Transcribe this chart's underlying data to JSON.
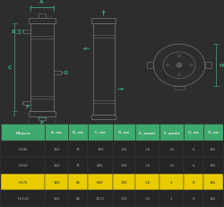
{
  "bg_color": "#2d2d2d",
  "table_header_bg": "#3daa6e",
  "table_header_text": "#e0e0e0",
  "table_row_bg_odd": "#252525",
  "table_row_bg_even": "#252525",
  "table_row_bg_highlight": "#e8cc00",
  "table_row_text_normal": "#aaaaaa",
  "table_row_text_highlight": "#222222",
  "table_border_color": "#444444",
  "label_color": "#3daa7a",
  "arrow_color": "#3daa7a",
  "drawing_line_color": "#6a6a6a",
  "drawing_line_color2": "#555555",
  "columns": [
    "Модель",
    "А, мм",
    "В, мм",
    "С, мм",
    "D, мм",
    "E, дюйм",
    "F, дюйм",
    "G, мм",
    "H, мм"
  ],
  "col_widths": [
    1.6,
    0.85,
    0.72,
    0.9,
    0.82,
    0.88,
    0.88,
    0.72,
    0.72
  ],
  "rows": [
    [
      "HE40",
      "160",
      "75",
      "360",
      "133",
      "1.0",
      "1.5",
      "6",
      "165"
    ],
    [
      "HE60",
      "160",
      "75",
      "460",
      "133",
      "1.0",
      "1.5",
      "6",
      "165"
    ],
    [
      "HE75",
      "160",
      "85",
      "600",
      "133",
      "1.0",
      "2",
      "6",
      "165"
    ],
    [
      "HE120",
      "160",
      "85",
      "1070",
      "133",
      "1.5",
      "2",
      "6",
      "165"
    ]
  ],
  "highlight_row": 2,
  "draw_split": 0.41
}
